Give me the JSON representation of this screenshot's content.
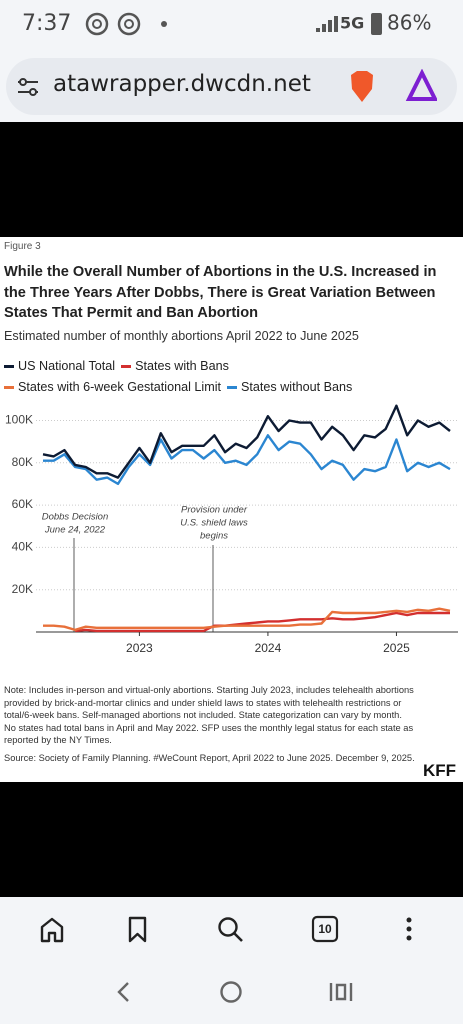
{
  "status_bar": {
    "time": "7:37",
    "network": "5G",
    "battery": "86%"
  },
  "browser": {
    "url": "atawrapper.dwcdn.net",
    "tab_count": "10"
  },
  "figure_label": "Figure 3",
  "chart_data": {
    "type": "line",
    "title": "While the Overall Number of Abortions in the U.S. Increased in the Three Years After Dobbs, There is Great Variation Between States That Permit and Ban Abortion",
    "subtitle": "Estimated number of monthly abortions April 2022 to June 2025",
    "categories": [
      null,
      null,
      null,
      null,
      null,
      null,
      null,
      null,
      null,
      "2023",
      null,
      null,
      null,
      null,
      null,
      null,
      null,
      null,
      null,
      null,
      null,
      "2024",
      null,
      null,
      null,
      null,
      null,
      null,
      null,
      null,
      null,
      null,
      null,
      "2025",
      null,
      null,
      null,
      null,
      null
    ],
    "series": [
      {
        "name": "US National Total",
        "color": "#0d1b33",
        "values": [
          84,
          83,
          86,
          79,
          78,
          75,
          75,
          73,
          80,
          87,
          80,
          94,
          85,
          88,
          88,
          88,
          93,
          85,
          89,
          87,
          92,
          102,
          95,
          100,
          99,
          99,
          91,
          97,
          93,
          86,
          93,
          92,
          96,
          107,
          93,
          100,
          97,
          99,
          95
        ]
      },
      {
        "name": "States with Bans",
        "color": "#d32f2f",
        "values": [
          null,
          null,
          null,
          0.5,
          1,
          0.5,
          0.5,
          0.5,
          0.5,
          0.5,
          0.5,
          0.5,
          0.5,
          0.5,
          0.5,
          0.5,
          3,
          3,
          3.5,
          4,
          4.5,
          5,
          5,
          5.5,
          6,
          6,
          6,
          6.5,
          6,
          6,
          6.5,
          7,
          8,
          9,
          8,
          9,
          9,
          9,
          9
        ]
      },
      {
        "name": "States with 6-week Gestational Limit",
        "color": "#e8703a",
        "values": [
          3,
          3,
          2.5,
          1,
          2.5,
          2,
          2,
          2,
          2,
          2,
          2,
          2,
          2,
          2,
          2,
          2,
          2.5,
          3,
          3,
          3,
          3,
          3,
          3,
          3,
          3.5,
          3.5,
          4,
          9.5,
          9,
          9,
          9,
          9,
          9.5,
          10,
          9.5,
          10.5,
          10,
          11,
          10
        ]
      },
      {
        "name": "States without Bans",
        "color": "#2b86d1",
        "values": [
          81,
          81,
          84,
          78,
          77,
          72,
          73,
          70,
          78,
          84,
          79,
          91,
          82,
          86,
          86,
          82,
          86,
          80,
          81,
          79,
          84,
          93,
          86,
          90,
          89,
          84,
          77,
          81,
          79,
          72,
          77,
          76,
          78,
          91,
          76,
          80,
          78,
          80,
          77
        ]
      }
    ],
    "ylim": [
      0,
      104
    ],
    "yticks": [
      {
        "value": 20,
        "label": "20K"
      },
      {
        "value": 40,
        "label": "40K"
      },
      {
        "value": 60,
        "label": "60K"
      },
      {
        "value": 80,
        "label": "80K"
      },
      {
        "value": 100,
        "label": "100K"
      }
    ],
    "grid": true,
    "annotations": [
      {
        "text": [
          "Dobbs Decision",
          "June 24, 2022"
        ]
      },
      {
        "text": [
          "Provision under",
          "U.S. shield laws",
          "begins"
        ]
      }
    ]
  },
  "note": "Note: Includes in-person and virtual-only abortions. Starting July 2023, includes telehealth abortions provided by brick-and-mortar clinics and under shield laws to states with telehealth restrictions or total/6-week bans. Self-managed abortions not included. State categorization can vary by month. No states had total bans in April and May 2022. SFP uses the monthly legal status for each state as reported by the NY Times.",
  "source": "Source: Society of Family Planning. #WeCount Report, April 2022 to June 2025. December 9, 2025.",
  "logo": "KFF"
}
